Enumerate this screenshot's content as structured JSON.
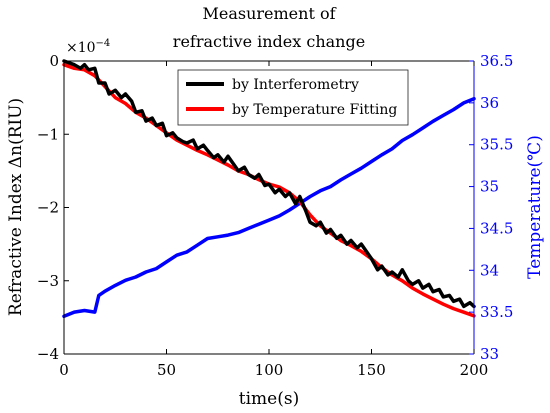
{
  "chart_data": {
    "type": "line",
    "title": "Measurement of refractive index change",
    "title_lines": [
      "Measurement of",
      "refractive index change"
    ],
    "xlabel": "time(s)",
    "xlim": [
      0,
      200
    ],
    "xticks": [
      0,
      50,
      100,
      150,
      200
    ],
    "left_axis": {
      "label": "Refractive Index Δn(RIU)",
      "exponent_label": "×10",
      "exponent": "−4",
      "ylim": [
        -4,
        0
      ],
      "ticks": [
        0,
        -1,
        -2,
        -3,
        -4
      ],
      "tick_labels": [
        "0",
        "−1",
        "−2",
        "−3",
        "−4"
      ],
      "color": "#000000"
    },
    "right_axis": {
      "label": "Temperature(℃)",
      "ylim": [
        33,
        36.5
      ],
      "ticks": [
        33,
        33.5,
        34,
        34.5,
        35,
        35.5,
        36,
        36.5
      ],
      "tick_labels": [
        "33",
        "33.5",
        "34",
        "34.5",
        "35",
        "35.5",
        "36",
        "36.5"
      ],
      "color": "#0000ff"
    },
    "legend": {
      "placement": "top-center",
      "entries": [
        {
          "name": "by Interferometry",
          "color": "#000000"
        },
        {
          "name": "by Temperature Fitting",
          "color": "#ff0000"
        }
      ]
    },
    "series": [
      {
        "name": "by Interferometry",
        "axis": "left",
        "color": "#000000",
        "x": [
          0,
          5,
          8,
          10,
          12,
          15,
          17,
          20,
          22,
          25,
          28,
          30,
          33,
          35,
          38,
          40,
          43,
          45,
          48,
          50,
          53,
          55,
          58,
          60,
          63,
          65,
          68,
          70,
          73,
          75,
          78,
          80,
          83,
          85,
          88,
          90,
          93,
          95,
          98,
          100,
          103,
          105,
          108,
          110,
          113,
          115,
          118,
          120,
          123,
          125,
          128,
          130,
          133,
          135,
          138,
          140,
          143,
          145,
          148,
          150,
          153,
          155,
          158,
          160,
          163,
          165,
          168,
          170,
          173,
          175,
          178,
          180,
          183,
          185,
          188,
          190,
          193,
          195,
          198,
          200
        ],
        "y": [
          0,
          -0.05,
          -0.1,
          -0.05,
          -0.12,
          -0.1,
          -0.3,
          -0.3,
          -0.45,
          -0.4,
          -0.5,
          -0.45,
          -0.55,
          -0.7,
          -0.68,
          -0.82,
          -0.78,
          -0.88,
          -0.85,
          -1.02,
          -0.98,
          -1.05,
          -1.1,
          -1.12,
          -1.08,
          -1.2,
          -1.15,
          -1.22,
          -1.32,
          -1.28,
          -1.38,
          -1.3,
          -1.42,
          -1.5,
          -1.45,
          -1.55,
          -1.6,
          -1.55,
          -1.7,
          -1.68,
          -1.8,
          -1.75,
          -1.85,
          -1.8,
          -1.95,
          -1.85,
          -2.05,
          -2.2,
          -2.25,
          -2.2,
          -2.35,
          -2.3,
          -2.42,
          -2.38,
          -2.5,
          -2.45,
          -2.55,
          -2.5,
          -2.62,
          -2.7,
          -2.85,
          -2.8,
          -2.92,
          -2.88,
          -2.95,
          -2.85,
          -3.0,
          -3.05,
          -3.0,
          -3.1,
          -3.05,
          -3.15,
          -3.12,
          -3.22,
          -3.2,
          -3.28,
          -3.25,
          -3.35,
          -3.3,
          -3.35
        ]
      },
      {
        "name": "by Temperature Fitting",
        "axis": "left",
        "color": "#ff0000",
        "x": [
          0,
          5,
          10,
          15,
          20,
          25,
          30,
          35,
          40,
          45,
          50,
          55,
          60,
          65,
          70,
          75,
          80,
          85,
          90,
          95,
          100,
          105,
          110,
          115,
          120,
          125,
          130,
          135,
          140,
          145,
          150,
          155,
          160,
          165,
          170,
          175,
          180,
          185,
          190,
          195,
          200
        ],
        "y": [
          -0.05,
          -0.1,
          -0.12,
          -0.2,
          -0.35,
          -0.5,
          -0.58,
          -0.7,
          -0.78,
          -0.88,
          -0.98,
          -1.08,
          -1.15,
          -1.22,
          -1.28,
          -1.35,
          -1.42,
          -1.5,
          -1.55,
          -1.62,
          -1.68,
          -1.72,
          -1.8,
          -1.92,
          -2.1,
          -2.25,
          -2.35,
          -2.45,
          -2.52,
          -2.6,
          -2.7,
          -2.82,
          -2.92,
          -3.0,
          -3.1,
          -3.18,
          -3.25,
          -3.32,
          -3.38,
          -3.43,
          -3.48
        ]
      },
      {
        "name": "Temperature",
        "axis": "right",
        "color": "#0000ff",
        "x": [
          0,
          5,
          10,
          15,
          17,
          20,
          25,
          30,
          35,
          40,
          45,
          50,
          55,
          60,
          65,
          70,
          75,
          80,
          85,
          90,
          95,
          100,
          105,
          110,
          115,
          120,
          125,
          130,
          135,
          140,
          145,
          150,
          155,
          160,
          165,
          170,
          175,
          180,
          185,
          190,
          195,
          200
        ],
        "y": [
          33.45,
          33.5,
          33.52,
          33.5,
          33.7,
          33.75,
          33.82,
          33.88,
          33.92,
          33.98,
          34.02,
          34.1,
          34.18,
          34.22,
          34.3,
          34.38,
          34.4,
          34.42,
          34.45,
          34.5,
          34.55,
          34.6,
          34.65,
          34.72,
          34.8,
          34.88,
          34.95,
          35.0,
          35.08,
          35.15,
          35.22,
          35.3,
          35.38,
          35.45,
          35.55,
          35.62,
          35.7,
          35.78,
          35.85,
          35.92,
          36.0,
          36.05
        ]
      }
    ]
  }
}
